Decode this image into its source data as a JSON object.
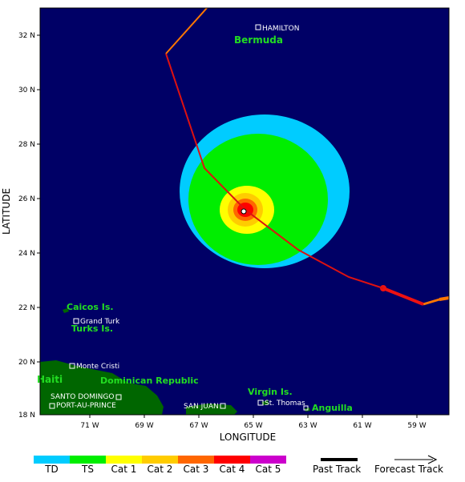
{
  "axes": {
    "xlabel": "LONGITUDE",
    "ylabel": "LATITUDE",
    "x_ticks": [
      "71 W",
      "69 W",
      "67 W",
      "65 W",
      "63 W",
      "61 W",
      "59 W"
    ],
    "y_ticks": [
      "32 N",
      "30 N",
      "28 N",
      "26 N",
      "24 N",
      "22 N",
      "20 N",
      "18 N"
    ]
  },
  "places": {
    "hamilton": "HAMILTON",
    "bermuda": "Bermuda",
    "caicos": "Caicos Is.",
    "grand_turk": "Grand Turk",
    "turks": "Turks Is.",
    "monte_cristi": "Monte Cristi",
    "haiti": "Haiti",
    "dominican_republic": "Dominican Republic",
    "santo_domingo": "SANTO DOMINGO",
    "port_au_prince": "PORT-AU-PRINCE",
    "san_juan": "SAN JUAN",
    "virgin_is": "Virgin Is.",
    "st_thomas": "St. Thomas",
    "anguilla": "Anguilla"
  },
  "legend": {
    "categories": [
      {
        "label": "TD",
        "color": "#00ccff"
      },
      {
        "label": "TS",
        "color": "#00ee00"
      },
      {
        "label": "Cat 1",
        "color": "#ffff00"
      },
      {
        "label": "Cat 2",
        "color": "#ffcc00"
      },
      {
        "label": "Cat 3",
        "color": "#ff6600"
      },
      {
        "label": "Cat 4",
        "color": "#ff0000"
      },
      {
        "label": "Cat 5",
        "color": "#cc00cc"
      }
    ],
    "past_track": "Past Track",
    "forecast_track": "Forecast Track"
  },
  "colors": {
    "ocean": "#000066",
    "land": "#006600",
    "td": "#00ccff",
    "ts": "#00ee00",
    "cat1": "#ffff00",
    "cat2": "#ffcc00",
    "cat3": "#ff6600",
    "cat4": "#ff0000",
    "track": "#dd1111",
    "track_older": "#ff7700"
  }
}
